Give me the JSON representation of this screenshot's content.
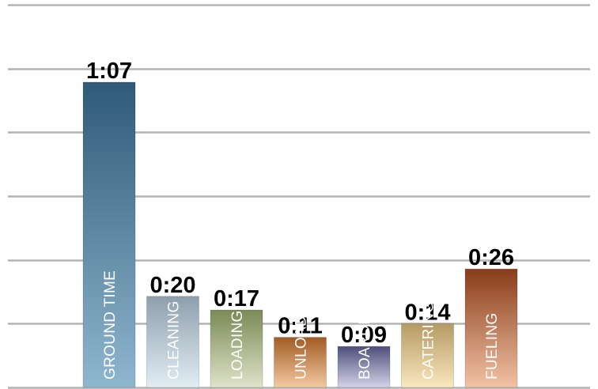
{
  "chart_data": {
    "type": "bar",
    "categories": [
      "GROUND TIME",
      "CLEANING",
      "LOADING",
      "UNLOAD",
      "BOARDING",
      "CATERING",
      "FUELING"
    ],
    "values": [
      67,
      20,
      17,
      11,
      9,
      14,
      26
    ],
    "data_labels": [
      "1:07",
      "0:20",
      "0:17",
      "0:11",
      "0:09",
      "0:14",
      "0:26"
    ],
    "unit": "minutes",
    "ylim": [
      0,
      84
    ],
    "gridlines": [
      0,
      14,
      28,
      42,
      56,
      70,
      84
    ],
    "grid": true,
    "legend": "none",
    "title": "",
    "xlabel": "",
    "ylabel": "",
    "category_label_orientation": "vertical-inside-bar",
    "colors": [
      {
        "top": "#2f5a78",
        "bottom": "#8fb6cf"
      },
      {
        "top": "#8e9fac",
        "bottom": "#e2edf5"
      },
      {
        "top": "#7a8a55",
        "bottom": "#dfe3c9"
      },
      {
        "top": "#a25c24",
        "bottom": "#f3c9a0"
      },
      {
        "top": "#4e4e7a",
        "bottom": "#d3d3e9"
      },
      {
        "top": "#b59a63",
        "bottom": "#fbe8bf"
      },
      {
        "top": "#8a3c1a",
        "bottom": "#f1c3a4"
      }
    ]
  }
}
